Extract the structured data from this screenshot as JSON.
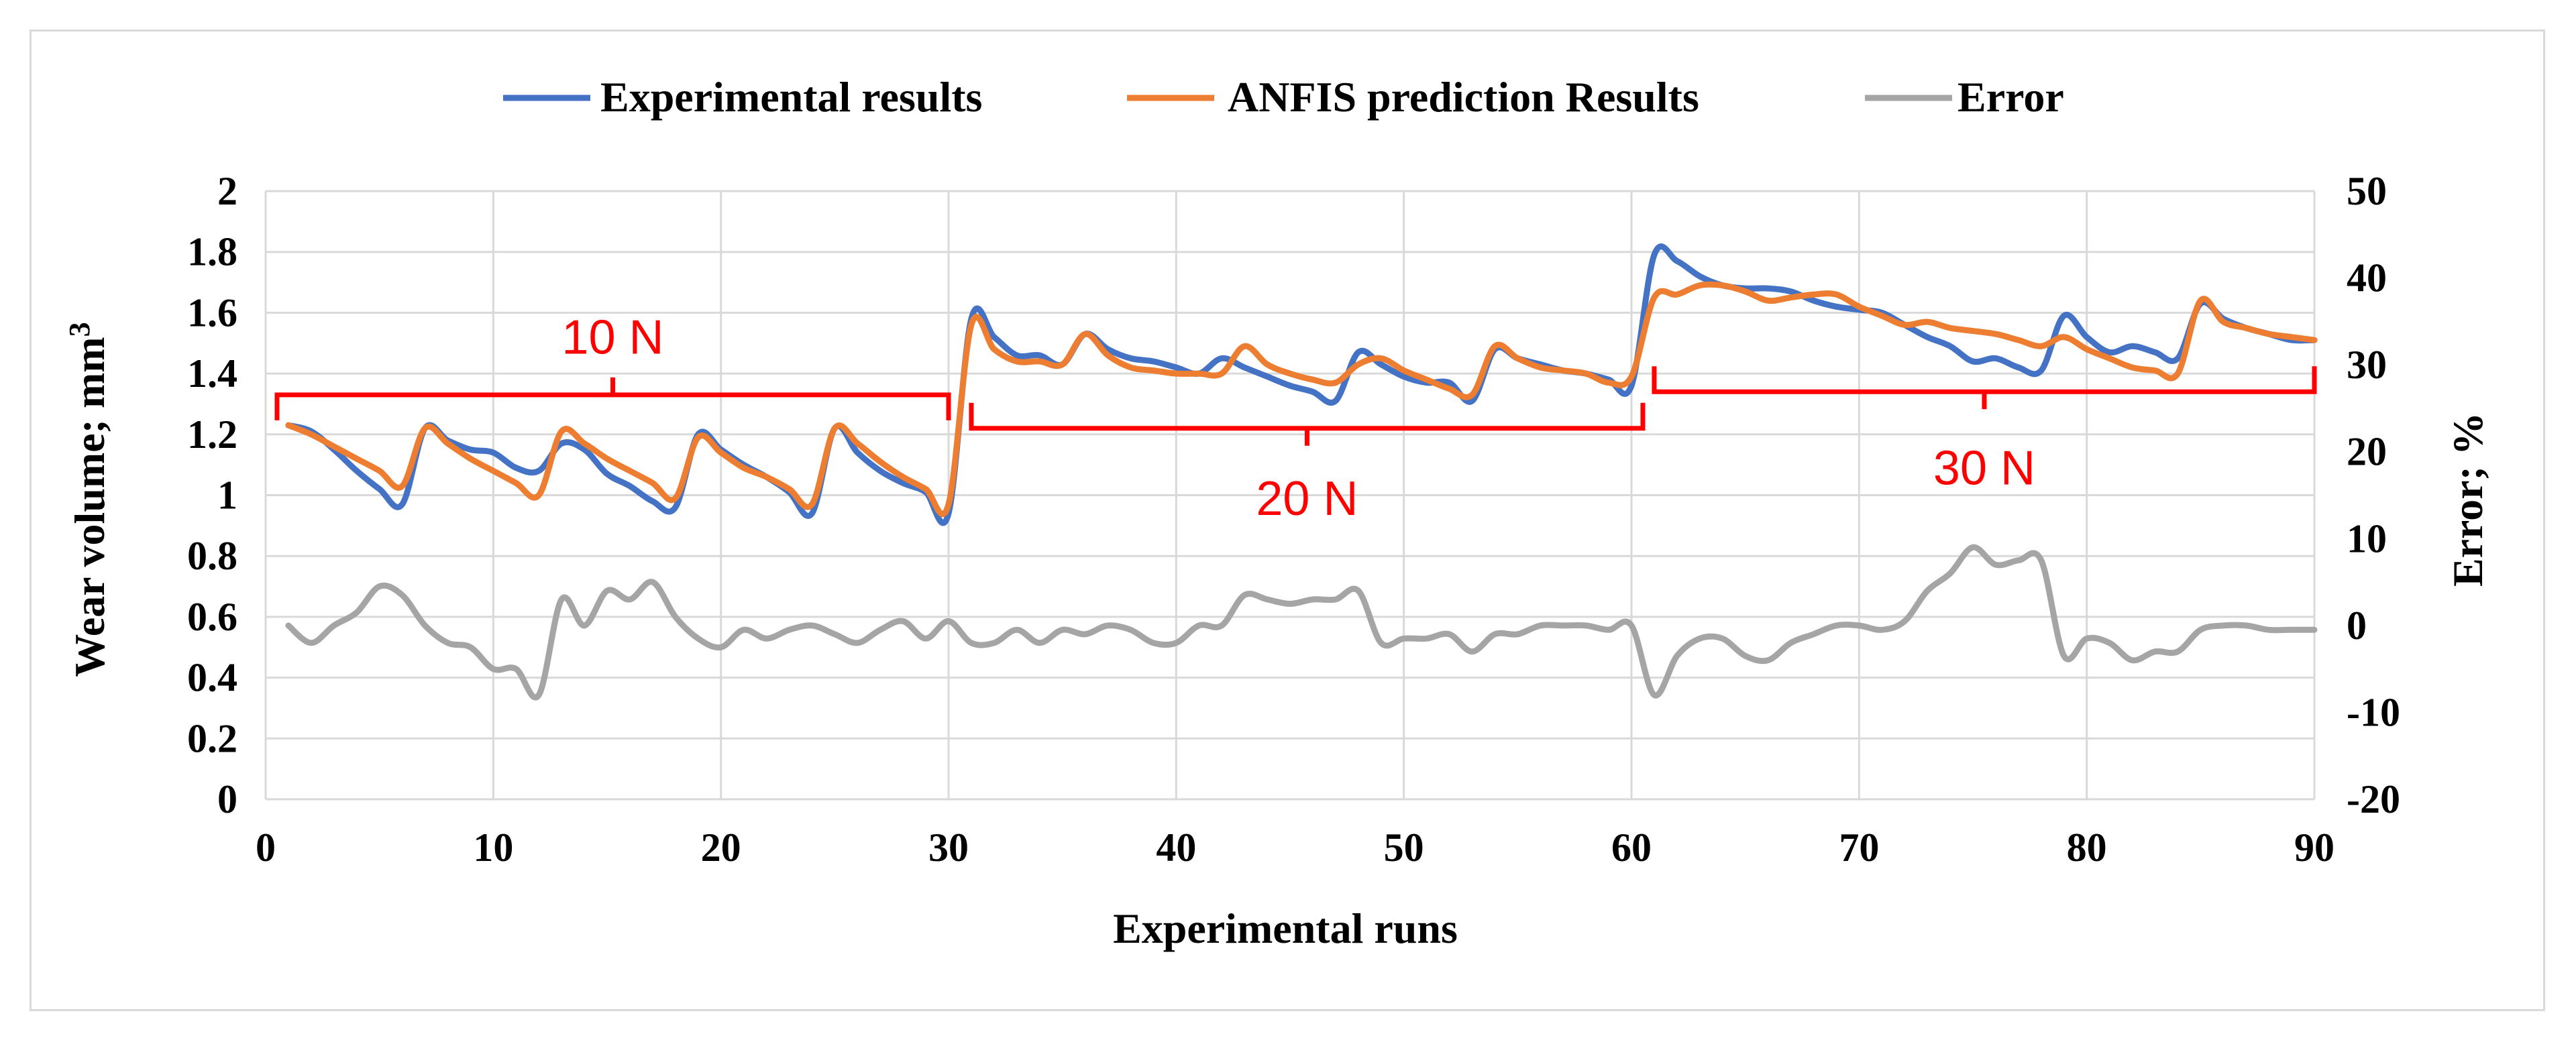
{
  "chart_data": {
    "type": "line",
    "title": "",
    "xlabel": "Experimental runs",
    "ylabel": "Wear volume; mm",
    "ylabel_superscript": "3",
    "y2label": "Error; %",
    "xlim": [
      0,
      90
    ],
    "ylim": [
      0,
      2
    ],
    "y2lim": [
      -20,
      50
    ],
    "x_ticks": [
      0,
      10,
      20,
      30,
      40,
      50,
      60,
      70,
      80,
      90
    ],
    "x_tick_labels": [
      "0",
      "10",
      "20",
      "30",
      "40",
      "50",
      "60",
      "70",
      "80",
      "90"
    ],
    "y_ticks": [
      0,
      0.2,
      0.4,
      0.6,
      0.8,
      1,
      1.2,
      1.4,
      1.6,
      1.8,
      2
    ],
    "y_tick_labels": [
      "0",
      "0.2",
      "0.4",
      "0.6",
      "0.8",
      "1",
      "1.2",
      "1.4",
      "1.6",
      "1.8",
      "2"
    ],
    "y2_ticks": [
      -20,
      -10,
      0,
      10,
      20,
      30,
      40,
      50
    ],
    "y2_tick_labels": [
      "-20",
      "-10",
      "0",
      "10",
      "20",
      "30",
      "40",
      "50"
    ],
    "grid": true,
    "legend_position": "top",
    "x": [
      1,
      2,
      3,
      4,
      5,
      6,
      7,
      8,
      9,
      10,
      11,
      12,
      13,
      14,
      15,
      16,
      17,
      18,
      19,
      20,
      21,
      22,
      23,
      24,
      25,
      26,
      27,
      28,
      29,
      30,
      31,
      32,
      33,
      34,
      35,
      36,
      37,
      38,
      39,
      40,
      41,
      42,
      43,
      44,
      45,
      46,
      47,
      48,
      49,
      50,
      51,
      52,
      53,
      54,
      55,
      56,
      57,
      58,
      59,
      60,
      61,
      62,
      63,
      64,
      65,
      66,
      67,
      68,
      69,
      70,
      71,
      72,
      73,
      74,
      75,
      76,
      77,
      78,
      79,
      80,
      81,
      82,
      83,
      84,
      85,
      86,
      87,
      88,
      89,
      90
    ],
    "series": [
      {
        "name": "Experimental results",
        "color": "#4472c4",
        "axis": "left",
        "values": [
          1.23,
          1.21,
          1.15,
          1.08,
          1.02,
          0.97,
          1.22,
          1.18,
          1.15,
          1.14,
          1.09,
          1.08,
          1.17,
          1.15,
          1.07,
          1.03,
          0.98,
          0.96,
          1.2,
          1.15,
          1.1,
          1.06,
          1.01,
          0.94,
          1.22,
          1.14,
          1.08,
          1.04,
          1.01,
          0.94,
          1.58,
          1.52,
          1.46,
          1.46,
          1.43,
          1.53,
          1.48,
          1.45,
          1.44,
          1.42,
          1.4,
          1.45,
          1.42,
          1.39,
          1.36,
          1.34,
          1.31,
          1.47,
          1.43,
          1.39,
          1.37,
          1.37,
          1.31,
          1.48,
          1.45,
          1.43,
          1.41,
          1.4,
          1.38,
          1.36,
          1.79,
          1.77,
          1.72,
          1.69,
          1.68,
          1.68,
          1.67,
          1.64,
          1.62,
          1.61,
          1.6,
          1.56,
          1.52,
          1.49,
          1.44,
          1.45,
          1.42,
          1.41,
          1.59,
          1.52,
          1.47,
          1.49,
          1.47,
          1.45,
          1.63,
          1.58,
          1.55,
          1.53,
          1.51,
          1.51
        ]
      },
      {
        "name": "ANFIS prediction Results",
        "color": "#ed7d31",
        "axis": "left",
        "values": [
          1.23,
          1.2,
          1.16,
          1.12,
          1.08,
          1.03,
          1.22,
          1.17,
          1.12,
          1.08,
          1.04,
          1.0,
          1.21,
          1.17,
          1.12,
          1.08,
          1.04,
          0.99,
          1.19,
          1.14,
          1.09,
          1.06,
          1.02,
          0.97,
          1.22,
          1.17,
          1.11,
          1.06,
          1.02,
          0.97,
          1.56,
          1.48,
          1.44,
          1.44,
          1.43,
          1.53,
          1.46,
          1.42,
          1.41,
          1.4,
          1.4,
          1.4,
          1.49,
          1.43,
          1.4,
          1.38,
          1.37,
          1.43,
          1.45,
          1.41,
          1.38,
          1.35,
          1.33,
          1.49,
          1.45,
          1.42,
          1.41,
          1.4,
          1.37,
          1.39,
          1.65,
          1.66,
          1.69,
          1.69,
          1.67,
          1.64,
          1.65,
          1.66,
          1.66,
          1.62,
          1.59,
          1.56,
          1.57,
          1.55,
          1.54,
          1.53,
          1.51,
          1.49,
          1.52,
          1.48,
          1.45,
          1.42,
          1.41,
          1.4,
          1.64,
          1.57,
          1.55,
          1.53,
          1.52,
          1.51
        ]
      },
      {
        "name": "Error",
        "color": "#a5a5a5",
        "axis": "right",
        "values": [
          0,
          -2,
          0,
          1.5,
          4.5,
          3.5,
          0,
          -2,
          -2.5,
          -5,
          -5,
          -8,
          3,
          0,
          4,
          3,
          5,
          1,
          -1.5,
          -2.5,
          -0.5,
          -1.5,
          -0.5,
          0,
          -1,
          -2,
          -0.5,
          0.5,
          -1.5,
          0.5,
          -2,
          -2,
          -0.5,
          -2,
          -0.5,
          -1,
          0,
          -0.5,
          -2,
          -2,
          0,
          0,
          3.5,
          3,
          2.5,
          3,
          3,
          4,
          -2,
          -1.5,
          -1.5,
          -1,
          -3,
          -1,
          -1,
          0,
          0,
          0,
          -0.5,
          0,
          -8,
          -3.5,
          -1.5,
          -1.5,
          -3.5,
          -4,
          -2,
          -1,
          0,
          0,
          -0.5,
          0.5,
          4,
          6,
          9,
          7,
          7.5,
          7.5,
          -3.5,
          -1.5,
          -2,
          -4,
          -3,
          -3,
          -0.5,
          0,
          0,
          -0.5,
          -0.5,
          -0.5
        ]
      }
    ],
    "annotations": [
      {
        "text": "10 N",
        "x_start": 0.5,
        "x_end": 30,
        "y": 1.33,
        "label_y": 1.52,
        "label_above": true
      },
      {
        "text": "20 N",
        "x_start": 31,
        "x_end": 60.5,
        "y": 1.22,
        "label_y": 0.99,
        "label_above": false
      },
      {
        "text": "30 N",
        "x_start": 61,
        "x_end": 90,
        "y": 1.34,
        "label_y": 1.09,
        "label_above": false
      }
    ]
  }
}
